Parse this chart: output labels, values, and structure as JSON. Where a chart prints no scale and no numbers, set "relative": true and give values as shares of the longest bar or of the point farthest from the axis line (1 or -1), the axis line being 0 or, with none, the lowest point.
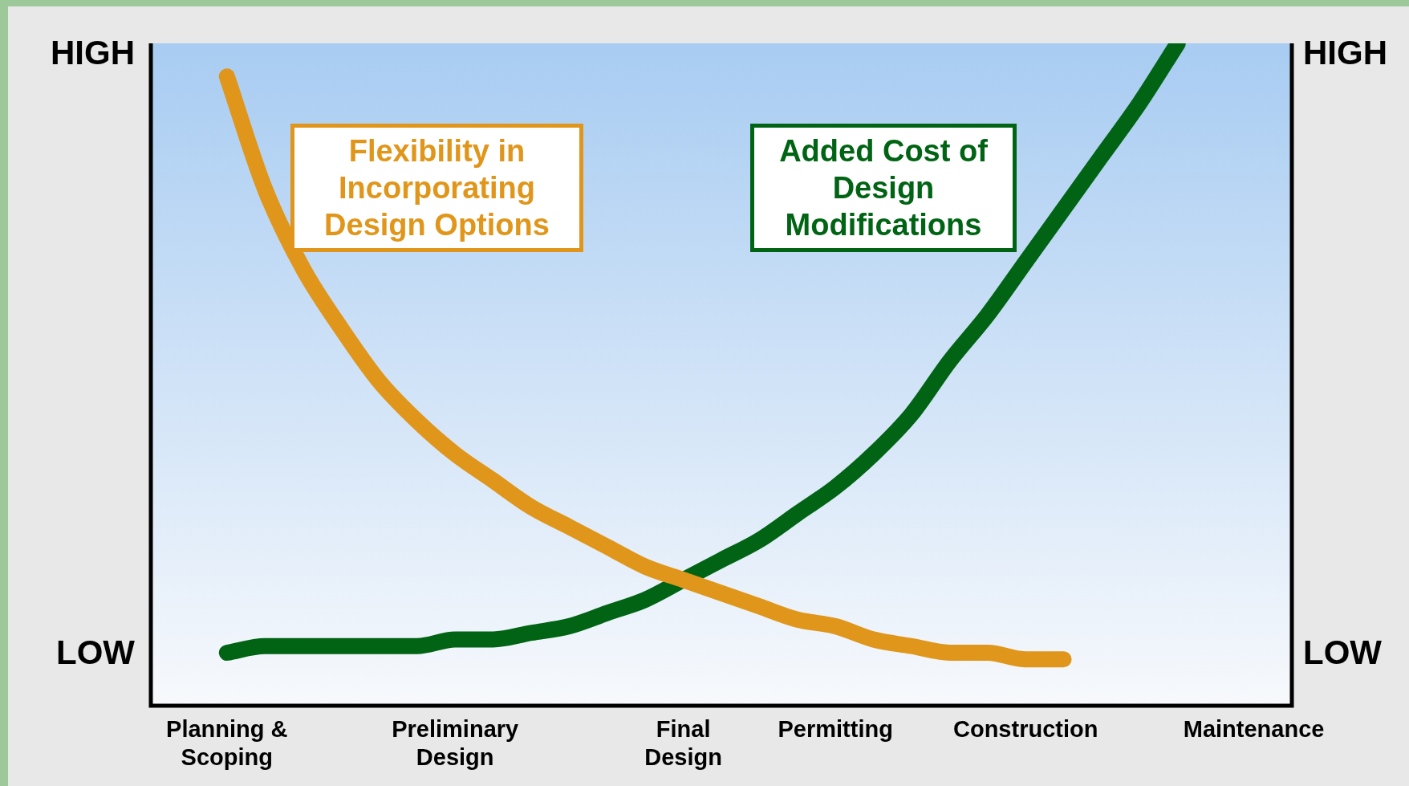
{
  "chart_data": {
    "type": "line",
    "relative": true,
    "categories": [
      null,
      null,
      "Planning &\nScoping",
      null,
      null,
      null,
      null,
      null,
      "Preliminary\nDesign",
      null,
      null,
      null,
      null,
      null,
      "Final\nDesign",
      null,
      null,
      null,
      "Permitting",
      null,
      null,
      null,
      null,
      "Construction",
      null,
      null,
      null,
      null,
      null,
      "Maintenance",
      null
    ],
    "annotations": [
      "HIGH",
      "LOW",
      "HIGH",
      "LOW"
    ],
    "grid": false,
    "legend": false,
    "marker": "none",
    "line_style": "solid",
    "series": [
      {
        "name": "Flexibility in Incorporating Design Options",
        "color": "#e0961a",
        "values": [
          null,
          null,
          0.95,
          0.78,
          0.66,
          0.57,
          0.49,
          0.43,
          0.38,
          0.34,
          0.3,
          0.27,
          0.24,
          0.21,
          0.19,
          0.17,
          0.15,
          0.13,
          0.12,
          0.1,
          0.09,
          0.08,
          0.08,
          0.07,
          0.07,
          null,
          null,
          null,
          null,
          null,
          null
        ]
      },
      {
        "name": "Added Cost of Design Modifications",
        "color": "#006414",
        "values": [
          null,
          null,
          0.08,
          0.09,
          0.09,
          0.09,
          0.09,
          0.09,
          0.1,
          0.1,
          0.11,
          0.12,
          0.14,
          0.16,
          0.19,
          0.22,
          0.25,
          0.29,
          0.33,
          0.38,
          0.44,
          0.52,
          0.59,
          0.67,
          0.75,
          0.83,
          0.91,
          1,
          null,
          null,
          null
        ]
      }
    ]
  }
}
